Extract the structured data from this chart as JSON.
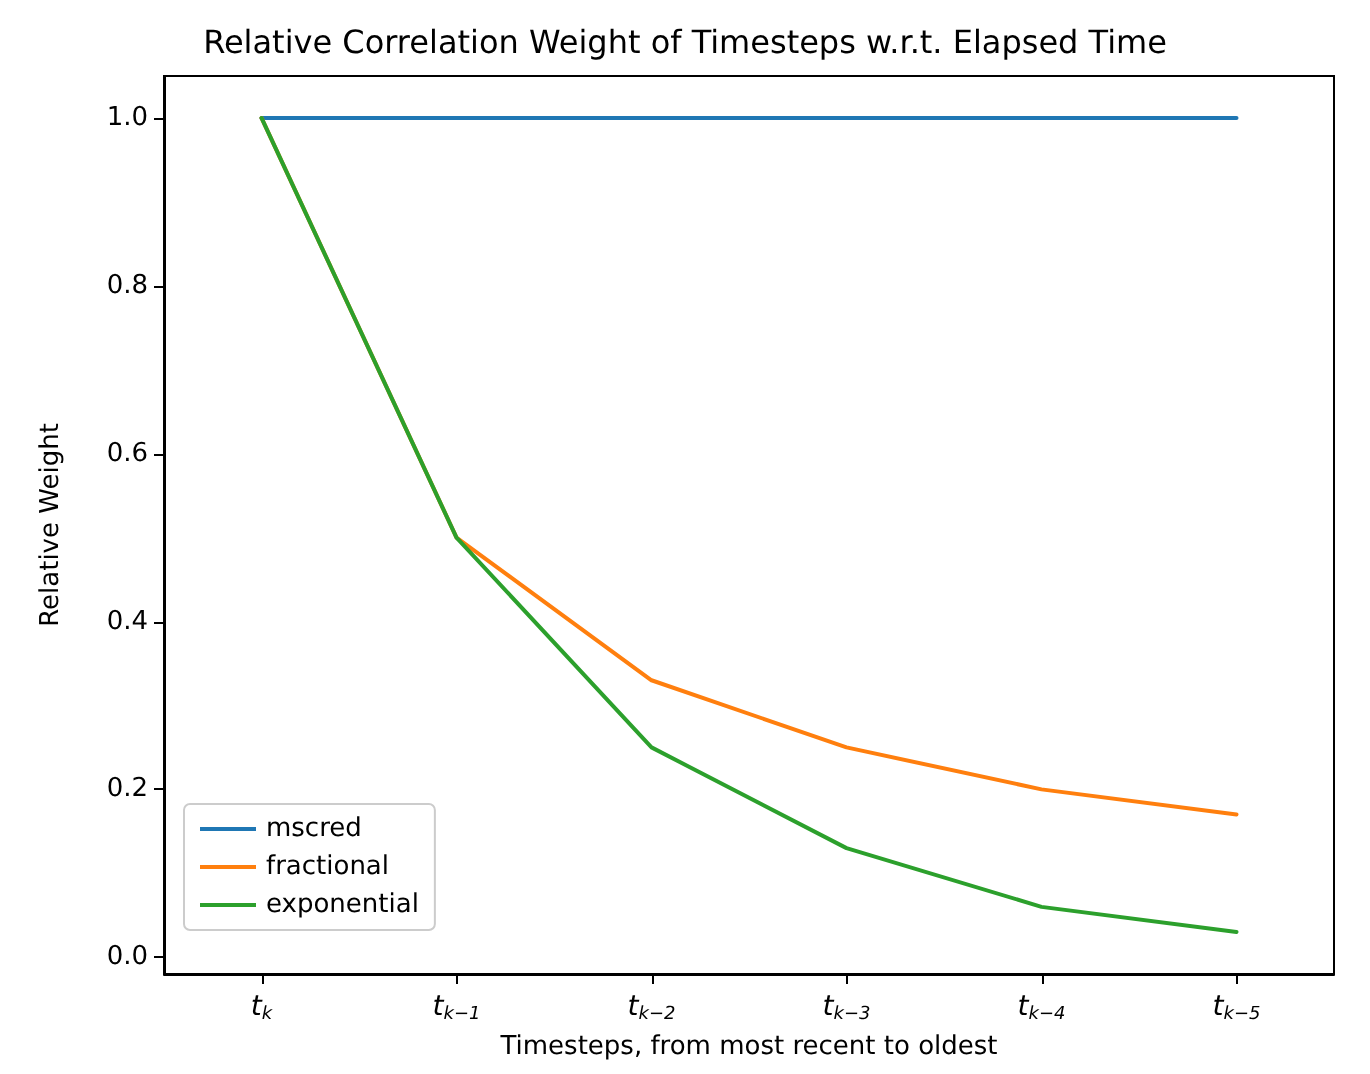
{
  "chart_data": {
    "type": "line",
    "title": "Relative Correlation Weight of Timesteps w.r.t. Elapsed Time",
    "xlabel": "Timesteps, from most recent to oldest",
    "ylabel": "Relative Weight",
    "categories": [
      "t$_{k}$",
      "t$_{k−1}$",
      "t$_{k−2}$",
      "t$_{k−3}$",
      "t$_{k−4}$",
      "t$_{k−5}$"
    ],
    "series": [
      {
        "name": "mscred",
        "color": "#1f77b4",
        "values": [
          1,
          1,
          1,
          1,
          1,
          1
        ]
      },
      {
        "name": "fractional",
        "color": "#ff7f0e",
        "values": [
          1,
          0.5,
          0.33,
          0.25,
          0.2,
          0.17
        ]
      },
      {
        "name": "exponential",
        "color": "#2ca02c",
        "values": [
          1,
          0.5,
          0.25,
          0.13,
          0.06,
          0.03
        ]
      }
    ],
    "ylim": [
      -0.02,
      1.05
    ],
    "yticks": [
      {
        "value": 0,
        "label": "0.0"
      },
      {
        "value": 0.2,
        "label": "0.2"
      },
      {
        "value": 0.4,
        "label": "0.4"
      },
      {
        "value": 0.6,
        "label": "0.6"
      },
      {
        "value": 0.8,
        "label": "0.8"
      },
      {
        "value": 1,
        "label": "1.0"
      }
    ],
    "grid": false,
    "legend": "bottom left",
    "marker": "none",
    "line_style": "solid"
  }
}
